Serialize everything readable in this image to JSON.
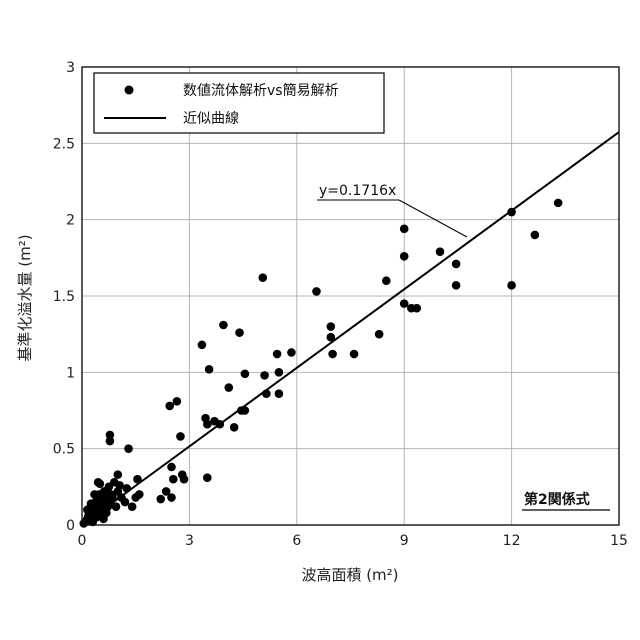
{
  "chart_data": {
    "type": "scatter",
    "title": "",
    "xlabel": "波高面積 (m²)",
    "ylabel": "基準化溢水量 (m²)",
    "xlim": [
      0,
      15
    ],
    "ylim": [
      0,
      3
    ],
    "x_ticks": [
      "0",
      "3",
      "6",
      "9",
      "12",
      "15"
    ],
    "y_ticks": [
      "0",
      "0.5",
      "1",
      "1.5",
      "2",
      "2.5",
      "3"
    ],
    "grid": true,
    "legend_position": "top-left",
    "legend": [
      {
        "label": "数値流体解析vs簡易解析",
        "marker": "filled-circle"
      },
      {
        "label": "近似曲線",
        "marker": "line"
      }
    ],
    "annotation": "y=0.1716x",
    "stamp": "第2関係式",
    "colors": {
      "points": "#000000",
      "line": "#000000",
      "grid": "#b4b4b4",
      "axes": "#000000"
    },
    "series": [
      {
        "name": "数値流体解析vs簡易解析",
        "points": [
          [
            0.05,
            0.01
          ],
          [
            0.1,
            0.02
          ],
          [
            0.15,
            0.04
          ],
          [
            0.18,
            0.06
          ],
          [
            0.2,
            0.03
          ],
          [
            0.22,
            0.08
          ],
          [
            0.25,
            0.05
          ],
          [
            0.28,
            0.1
          ],
          [
            0.3,
            0.02
          ],
          [
            0.32,
            0.12
          ],
          [
            0.35,
            0.07
          ],
          [
            0.38,
            0.15
          ],
          [
            0.4,
            0.05
          ],
          [
            0.42,
            0.18
          ],
          [
            0.45,
            0.09
          ],
          [
            0.48,
            0.2
          ],
          [
            0.5,
            0.11
          ],
          [
            0.52,
            0.14
          ],
          [
            0.55,
            0.06
          ],
          [
            0.58,
            0.17
          ],
          [
            0.6,
            0.1
          ],
          [
            0.62,
            0.22
          ],
          [
            0.65,
            0.13
          ],
          [
            0.68,
            0.08
          ],
          [
            0.7,
            0.18
          ],
          [
            0.72,
            0.12
          ],
          [
            0.75,
            0.25
          ],
          [
            0.78,
            0.15
          ],
          [
            0.3,
            0.09
          ],
          [
            0.45,
            0.28
          ],
          [
            0.5,
            0.27
          ],
          [
            0.35,
            0.2
          ],
          [
            0.25,
            0.14
          ],
          [
            0.15,
            0.1
          ],
          [
            0.6,
            0.04
          ],
          [
            0.8,
            0.2
          ],
          [
            0.85,
            0.18
          ],
          [
            0.9,
            0.28
          ],
          [
            0.95,
            0.12
          ],
          [
            1.0,
            0.22
          ],
          [
            1.0,
            0.33
          ],
          [
            1.05,
            0.26
          ],
          [
            1.1,
            0.18
          ],
          [
            1.2,
            0.15
          ],
          [
            1.25,
            0.24
          ],
          [
            1.3,
            0.5
          ],
          [
            1.4,
            0.12
          ],
          [
            1.5,
            0.18
          ],
          [
            1.55,
            0.3
          ],
          [
            1.6,
            0.2
          ],
          [
            0.78,
            0.59
          ],
          [
            0.78,
            0.55
          ],
          [
            2.2,
            0.17
          ],
          [
            2.35,
            0.22
          ],
          [
            2.45,
            0.78
          ],
          [
            2.5,
            0.38
          ],
          [
            2.55,
            0.3
          ],
          [
            2.65,
            0.81
          ],
          [
            2.75,
            0.58
          ],
          [
            2.8,
            0.33
          ],
          [
            2.85,
            0.3
          ],
          [
            2.5,
            0.18
          ],
          [
            3.35,
            1.18
          ],
          [
            3.45,
            0.7
          ],
          [
            3.5,
            0.66
          ],
          [
            3.55,
            1.02
          ],
          [
            3.5,
            0.31
          ],
          [
            3.7,
            0.68
          ],
          [
            3.85,
            0.66
          ],
          [
            3.95,
            1.31
          ],
          [
            4.1,
            0.9
          ],
          [
            4.25,
            0.64
          ],
          [
            4.4,
            1.26
          ],
          [
            4.45,
            0.75
          ],
          [
            4.55,
            0.75
          ],
          [
            4.55,
            0.99
          ],
          [
            5.05,
            1.62
          ],
          [
            5.1,
            0.98
          ],
          [
            5.15,
            0.86
          ],
          [
            5.45,
            1.12
          ],
          [
            5.5,
            1.0
          ],
          [
            5.5,
            0.86
          ],
          [
            5.85,
            1.13
          ],
          [
            6.55,
            1.53
          ],
          [
            6.95,
            1.3
          ],
          [
            6.95,
            1.23
          ],
          [
            7.0,
            1.12
          ],
          [
            7.6,
            1.12
          ],
          [
            8.3,
            1.25
          ],
          [
            8.5,
            1.6
          ],
          [
            9.0,
            1.94
          ],
          [
            9.0,
            1.76
          ],
          [
            9.0,
            1.45
          ],
          [
            9.2,
            1.42
          ],
          [
            9.35,
            1.42
          ],
          [
            10.0,
            1.79
          ],
          [
            10.45,
            1.71
          ],
          [
            10.45,
            1.57
          ],
          [
            12.0,
            2.05
          ],
          [
            12.0,
            1.57
          ],
          [
            12.65,
            1.9
          ],
          [
            13.3,
            2.11
          ]
        ]
      },
      {
        "name": "近似曲線",
        "equation": "y=0.1716x",
        "slope": 0.1716,
        "line": [
          [
            0,
            0
          ],
          [
            15,
            2.574
          ]
        ]
      }
    ]
  }
}
